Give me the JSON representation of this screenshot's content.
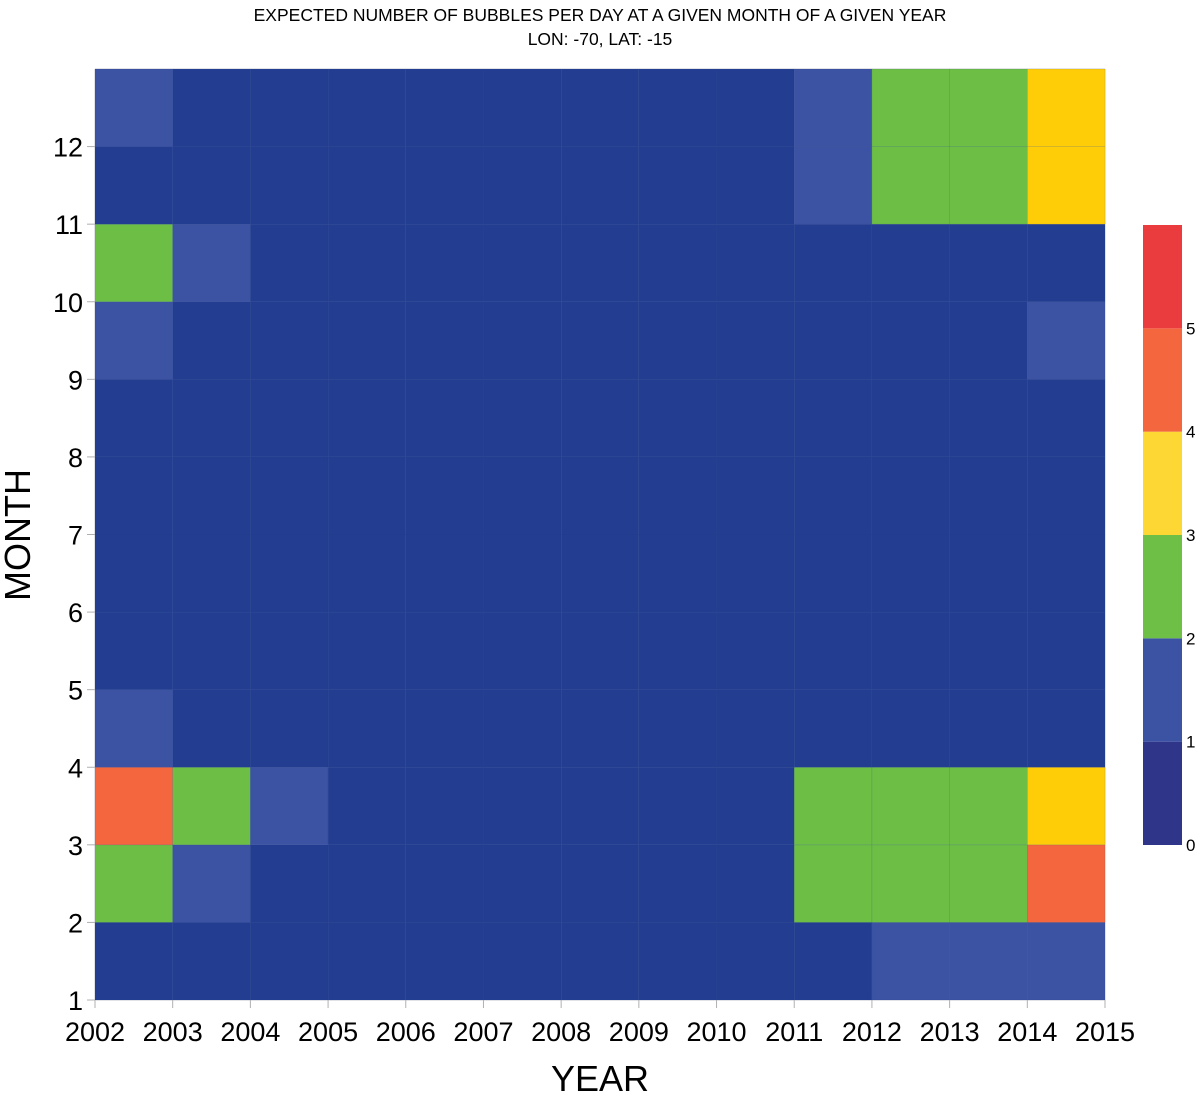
{
  "chart_data": {
    "type": "heatmap",
    "title": "EXPECTED NUMBER OF BUBBLES PER DAY AT A GIVEN MONTH OF A GIVEN YEAR",
    "subtitle": "LON: -70, LAT: -15",
    "xlabel": "YEAR",
    "ylabel": "MONTH",
    "x_ticks": [
      "2002",
      "2003",
      "2004",
      "2005",
      "2006",
      "2007",
      "2008",
      "2009",
      "2010",
      "2011",
      "2012",
      "2013",
      "2014",
      "2015"
    ],
    "y_ticks": [
      "1",
      "2",
      "3",
      "4",
      "5",
      "6",
      "7",
      "8",
      "9",
      "10",
      "11",
      "12"
    ],
    "xlim": [
      2002,
      2015
    ],
    "ylim": [
      1,
      13
    ],
    "grid": true,
    "legend_position": "right",
    "colorbar": {
      "ticks": [
        "0",
        "1",
        "2",
        "3",
        "4",
        "5"
      ],
      "range": [
        0,
        6
      ],
      "bins": [
        {
          "min": 0,
          "max": 1,
          "color": "#2f3589"
        },
        {
          "min": 1,
          "max": 2,
          "color": "#3c53a4"
        },
        {
          "min": 2,
          "max": 3,
          "color": "#6dbf45"
        },
        {
          "min": 3,
          "max": 4,
          "color": "#fdd835"
        },
        {
          "min": 4,
          "max": 5,
          "color": "#f4663e"
        },
        {
          "min": 5,
          "max": 6,
          "color": "#ea3b3f"
        }
      ]
    },
    "cell_colors": {
      "low": "#233e91",
      "one": "#3c53a4",
      "two": "#6cbe45",
      "three": "#fecd07",
      "four": "#f4663e"
    },
    "years": [
      2002,
      2003,
      2004,
      2005,
      2006,
      2007,
      2008,
      2009,
      2010,
      2011,
      2012,
      2013,
      2014
    ],
    "months": [
      1,
      2,
      3,
      4,
      5,
      6,
      7,
      8,
      9,
      10,
      11,
      12
    ],
    "values_by_month": [
      [
        0.5,
        0.5,
        0.5,
        0.5,
        0.5,
        0.5,
        0.5,
        0.5,
        0.5,
        0.5,
        1.5,
        1.5,
        1.5
      ],
      [
        2.5,
        1.5,
        0.5,
        0.5,
        0.5,
        0.5,
        0.5,
        0.5,
        0.5,
        2.5,
        2.5,
        2.5,
        4.5
      ],
      [
        4.5,
        2.5,
        1.5,
        0.5,
        0.5,
        0.5,
        0.5,
        0.5,
        0.5,
        2.5,
        2.5,
        2.5,
        3.5
      ],
      [
        1.5,
        0.5,
        0.5,
        0.5,
        0.5,
        0.5,
        0.5,
        0.5,
        0.5,
        0.5,
        0.5,
        0.5,
        0.5
      ],
      [
        0.5,
        0.5,
        0.5,
        0.5,
        0.5,
        0.5,
        0.5,
        0.5,
        0.5,
        0.5,
        0.5,
        0.5,
        0.5
      ],
      [
        0.5,
        0.5,
        0.5,
        0.5,
        0.5,
        0.5,
        0.5,
        0.5,
        0.5,
        0.5,
        0.5,
        0.5,
        0.5
      ],
      [
        0.5,
        0.5,
        0.5,
        0.5,
        0.5,
        0.5,
        0.5,
        0.5,
        0.5,
        0.5,
        0.5,
        0.5,
        0.5
      ],
      [
        0.5,
        0.5,
        0.5,
        0.5,
        0.5,
        0.5,
        0.5,
        0.5,
        0.5,
        0.5,
        0.5,
        0.5,
        0.5
      ],
      [
        1.5,
        0.5,
        0.5,
        0.5,
        0.5,
        0.5,
        0.5,
        0.5,
        0.5,
        0.5,
        0.5,
        0.5,
        1.5
      ],
      [
        2.5,
        1.5,
        0.5,
        0.5,
        0.5,
        0.5,
        0.5,
        0.5,
        0.5,
        0.5,
        0.5,
        0.5,
        0.5
      ],
      [
        0.5,
        0.5,
        0.5,
        0.5,
        0.5,
        0.5,
        0.5,
        0.5,
        0.5,
        1.5,
        2.5,
        2.5,
        3.5
      ],
      [
        1.5,
        0.5,
        0.5,
        0.5,
        0.5,
        0.5,
        0.5,
        0.5,
        0.5,
        1.5,
        2.5,
        2.5,
        3.5
      ]
    ]
  }
}
